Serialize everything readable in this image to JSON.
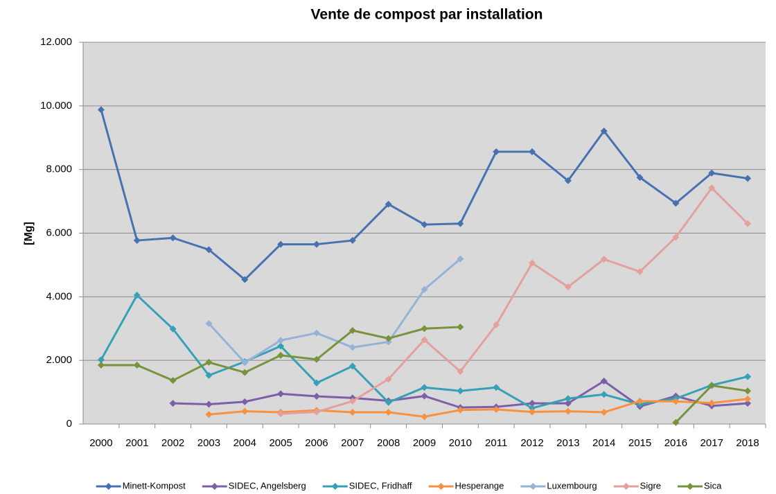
{
  "chart_data": {
    "type": "line",
    "title": "Vente  de compost par installation",
    "y_label": "[Mg]",
    "categories": [
      "2000",
      "2001",
      "2002",
      "2003",
      "2004",
      "2005",
      "2006",
      "2007",
      "2008",
      "2009",
      "2010",
      "2011",
      "2012",
      "2013",
      "2014",
      "2015",
      "2016",
      "2017",
      "2018"
    ],
    "ylim": [
      0,
      12000
    ],
    "yticks": [
      0,
      {
        "value": 2000,
        "label": "2.000"
      },
      {
        "value": 4000,
        "label": "4.000"
      },
      {
        "value": 6000,
        "label": "6.000"
      },
      {
        "value": 8000,
        "label": "8.000"
      },
      {
        "value": 10000,
        "label": "10.000"
      },
      {
        "value": 12000,
        "label": "12.000"
      }
    ],
    "grid": true,
    "legend": "bottom",
    "series": [
      {
        "name": "Minett-Kompost",
        "color": "#4672b0",
        "values": [
          9880,
          5770,
          5850,
          5480,
          4540,
          5650,
          5650,
          5770,
          6910,
          6270,
          6300,
          8560,
          8560,
          7650,
          9210,
          7750,
          6940,
          7890,
          7720
        ]
      },
      {
        "name": "SIDEC, Angelsberg",
        "color": "#7c5fa6",
        "values": [
          null,
          null,
          650,
          620,
          700,
          950,
          870,
          820,
          730,
          880,
          520,
          540,
          650,
          650,
          1350,
          550,
          880,
          570,
          650
        ]
      },
      {
        "name": "SIDEC, Fridhaff",
        "color": "#36a0b6",
        "values": [
          2020,
          4050,
          2990,
          1530,
          1960,
          2450,
          1290,
          1820,
          680,
          1150,
          1040,
          1150,
          500,
          800,
          930,
          620,
          800,
          1220,
          1490
        ]
      },
      {
        "name": "Hesperange",
        "color": "#f7913f",
        "values": [
          null,
          null,
          null,
          300,
          400,
          370,
          430,
          370,
          370,
          230,
          440,
          460,
          380,
          400,
          370,
          720,
          710,
          660,
          790
        ]
      },
      {
        "name": "Luxembourg",
        "color": "#95b3d7",
        "values": [
          null,
          null,
          null,
          3160,
          1930,
          2630,
          2860,
          2410,
          2580,
          4230,
          5190,
          null,
          null,
          null,
          null,
          null,
          null,
          null,
          null
        ]
      },
      {
        "name": "Sigre",
        "color": "#e3a09d",
        "values": [
          null,
          null,
          null,
          null,
          null,
          320,
          380,
          720,
          1410,
          2650,
          1650,
          3120,
          5060,
          4310,
          5180,
          4790,
          5870,
          7420,
          6300
        ]
      },
      {
        "name": "Sica",
        "color": "#77933c",
        "values": [
          1850,
          1850,
          1370,
          1940,
          1620,
          2160,
          2030,
          2940,
          2690,
          3000,
          3050,
          null,
          null,
          null,
          null,
          null,
          50,
          1210,
          1040
        ]
      }
    ]
  }
}
